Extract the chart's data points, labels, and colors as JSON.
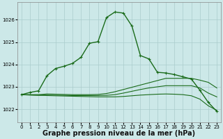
{
  "background_color": "#cce8e8",
  "grid_color": "#aacccc",
  "line_color": "#1a6b1a",
  "xlabel": "Graphe pression niveau de la mer (hPa)",
  "xlabel_fontsize": 7,
  "xlim": [
    -0.5,
    23.5
  ],
  "ylim": [
    1021.4,
    1026.8
  ],
  "yticks": [
    1022,
    1023,
    1024,
    1025,
    1026
  ],
  "xticks": [
    0,
    1,
    2,
    3,
    4,
    5,
    6,
    7,
    8,
    9,
    10,
    11,
    12,
    13,
    14,
    15,
    16,
    17,
    18,
    19,
    20,
    21,
    22,
    23
  ],
  "series": [
    {
      "x": [
        0,
        1,
        2,
        3,
        4,
        5,
        6,
        7,
        8,
        9,
        10,
        11,
        12,
        13,
        14,
        15,
        16,
        17,
        18,
        19,
        20,
        21,
        22,
        23
      ],
      "y": [
        1022.65,
        1022.75,
        1022.82,
        1023.5,
        1023.82,
        1023.92,
        1024.05,
        1024.32,
        1024.95,
        1025.02,
        1026.1,
        1026.35,
        1026.3,
        1025.72,
        1024.4,
        1024.25,
        1023.65,
        1023.62,
        1023.55,
        1023.45,
        1023.35,
        1022.85,
        1022.3,
        1021.9
      ],
      "marker": true
    },
    {
      "x": [
        0,
        1,
        2,
        3,
        4,
        5,
        6,
        7,
        8,
        9,
        10,
        11,
        12,
        13,
        14,
        15,
        16,
        17,
        18,
        19,
        20,
        21,
        22,
        23
      ],
      "y": [
        1022.65,
        1022.65,
        1022.65,
        1022.68,
        1022.67,
        1022.66,
        1022.65,
        1022.65,
        1022.65,
        1022.66,
        1022.7,
        1022.78,
        1022.88,
        1022.98,
        1023.08,
        1023.18,
        1023.28,
        1023.38,
        1023.38,
        1023.38,
        1023.38,
        1023.3,
        1023.2,
        1022.95
      ],
      "marker": false
    },
    {
      "x": [
        0,
        1,
        2,
        3,
        4,
        5,
        6,
        7,
        8,
        9,
        10,
        11,
        12,
        13,
        14,
        15,
        16,
        17,
        18,
        19,
        20,
        21,
        22,
        23
      ],
      "y": [
        1022.65,
        1022.64,
        1022.63,
        1022.63,
        1022.62,
        1022.62,
        1022.61,
        1022.61,
        1022.61,
        1022.61,
        1022.62,
        1022.65,
        1022.72,
        1022.8,
        1022.88,
        1022.95,
        1023.0,
        1023.05,
        1023.05,
        1023.05,
        1023.05,
        1022.95,
        1022.72,
        1022.55
      ],
      "marker": false
    },
    {
      "x": [
        0,
        1,
        2,
        3,
        4,
        5,
        6,
        7,
        8,
        9,
        10,
        11,
        12,
        13,
        14,
        15,
        16,
        17,
        18,
        19,
        20,
        21,
        22,
        23
      ],
      "y": [
        1022.65,
        1022.63,
        1022.62,
        1022.61,
        1022.6,
        1022.59,
        1022.58,
        1022.57,
        1022.56,
        1022.55,
        1022.55,
        1022.55,
        1022.57,
        1022.6,
        1022.63,
        1022.65,
        1022.67,
        1022.68,
        1022.67,
        1022.65,
        1022.6,
        1022.45,
        1022.15,
        1021.95
      ],
      "marker": false
    }
  ]
}
